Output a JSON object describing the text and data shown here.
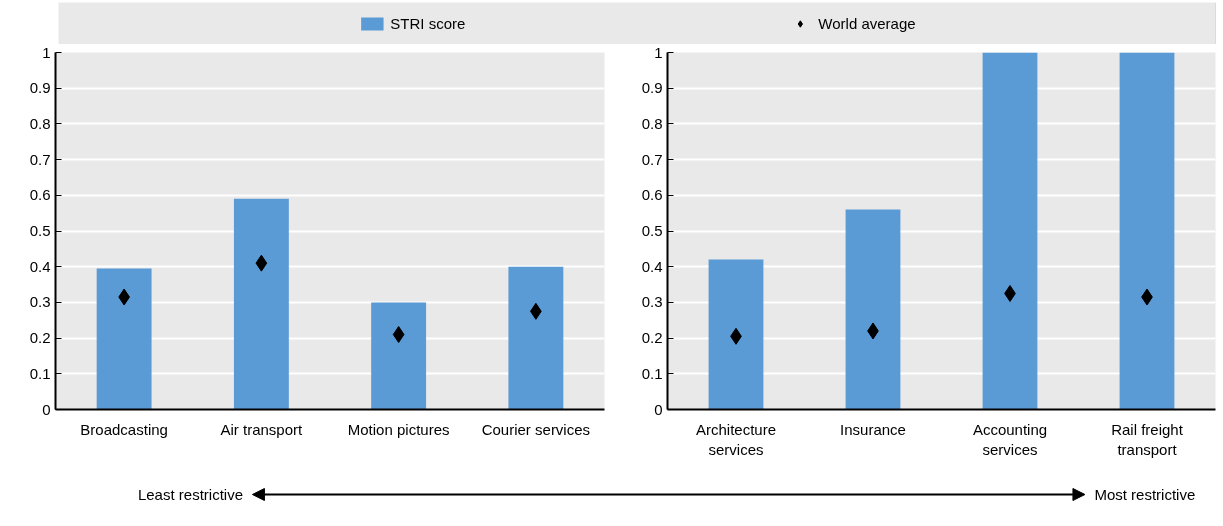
{
  "chart_data": [
    {
      "type": "bar",
      "categories": [
        "Broadcasting",
        "Air transport",
        "Motion pictures",
        "Courier services"
      ],
      "series": [
        {
          "name": "STRI score",
          "color": "#5b9bd5",
          "values": [
            0.395,
            0.59,
            0.3,
            0.4
          ]
        },
        {
          "name": "World average",
          "type": "scatter",
          "marker": "diamond",
          "color": "#000000",
          "values": [
            0.315,
            0.41,
            0.21,
            0.275
          ]
        }
      ],
      "ylim": [
        0,
        1
      ],
      "yticks": [
        0,
        0.1,
        0.2,
        0.3,
        0.4,
        0.5,
        0.6,
        0.7,
        0.8,
        0.9,
        1
      ],
      "grid": "y",
      "legend": "top",
      "annotations": [
        "Least restrictive",
        "Most restrictive"
      ]
    },
    {
      "type": "bar",
      "categories": [
        "Architecture\nservices",
        "Insurance",
        "Accounting\nservices",
        "Rail freight\ntransport"
      ],
      "series": [
        {
          "color": "#5b9bd5",
          "values": [
            0.42,
            0.56,
            1,
            1
          ]
        },
        {
          "type": "scatter",
          "marker": "diamond",
          "color": "#000000",
          "values": [
            0.205,
            0.22,
            0.325,
            0.315
          ]
        }
      ],
      "ylim": [
        0,
        1
      ],
      "yticks": [
        0,
        0.1,
        0.2,
        0.3,
        0.4,
        0.5,
        0.6,
        0.7,
        0.8,
        0.9,
        1
      ],
      "grid": "y"
    }
  ]
}
